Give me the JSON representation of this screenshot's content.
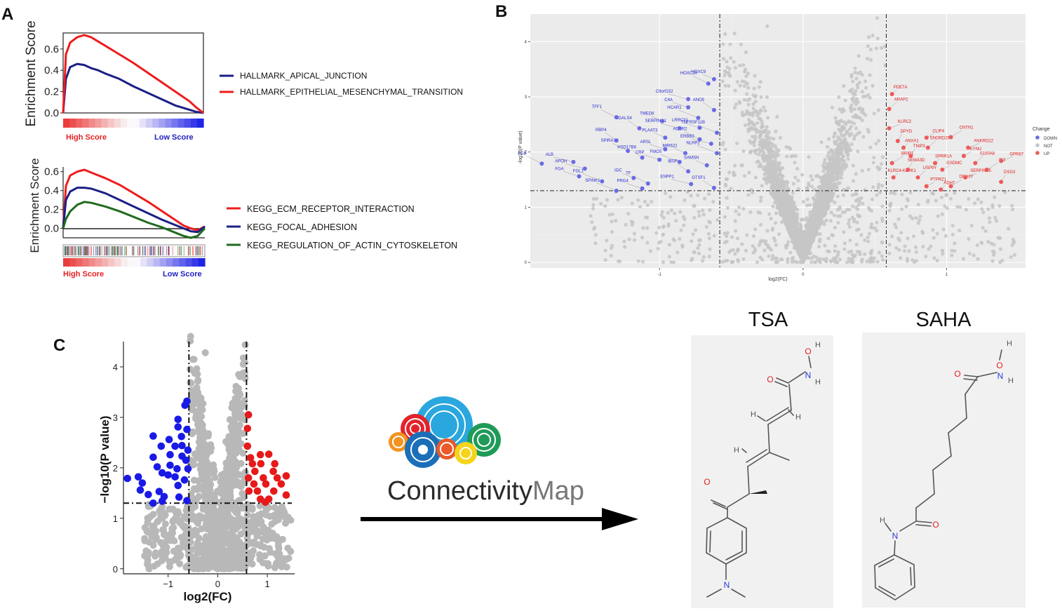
{
  "panels": {
    "A": {
      "letter": "A"
    },
    "B": {
      "letter": "B"
    },
    "C": {
      "letter": "C"
    }
  },
  "colors": {
    "red": "#ee1c1c",
    "navy": "#1b1f84",
    "green": "#1f6b1f",
    "blue_point": "#1a1ae6",
    "red_point": "#e61a1a",
    "grey_point": "#b8b8b8",
    "b_down": "#6a6ae8",
    "b_up": "#ee5a5a",
    "b_not": "#c6c6c6",
    "b_bg": "#ebebeb",
    "struct_bg": "#f1f1f1",
    "atom_red": "#e02020",
    "atom_blue": "#2a3ad8",
    "bond": "#555555"
  },
  "chart_data": [
    {
      "id": "A1",
      "type": "line",
      "title": "",
      "ylabel": "Enrichment Score",
      "ylim": [
        0,
        0.75
      ],
      "yticks": [
        "0.0",
        "0.2",
        "0.4",
        "0.6"
      ],
      "ytick_values": [
        0,
        0.2,
        0.4,
        0.6
      ],
      "x": [
        0,
        2,
        5,
        10,
        15,
        20,
        25,
        30,
        40,
        50,
        60,
        70,
        80,
        90,
        95,
        100
      ],
      "series": [
        {
          "name": "HALLMARK_APICAL_JUNCTION",
          "color": "#1b1f84",
          "values": [
            0,
            0.32,
            0.43,
            0.46,
            0.45,
            0.42,
            0.4,
            0.37,
            0.32,
            0.25,
            0.19,
            0.13,
            0.07,
            0.03,
            0.01,
            0
          ]
        },
        {
          "name": "HALLMARK_EPITHELIAL_MESENCHYMAL_TRANSITION",
          "color": "#ee1c1c",
          "values": [
            0,
            0.55,
            0.66,
            0.71,
            0.73,
            0.71,
            0.67,
            0.63,
            0.55,
            0.47,
            0.38,
            0.29,
            0.2,
            0.11,
            0.05,
            0
          ]
        }
      ],
      "score_bar": {
        "high": "High Score",
        "low": "Low Score"
      }
    },
    {
      "id": "A2",
      "type": "line",
      "title": "",
      "ylabel": "Enrichment Score",
      "ylim": [
        -0.1,
        0.65
      ],
      "yticks": [
        "0.0",
        "0.2",
        "0.4",
        "0.6"
      ],
      "ytick_values": [
        0,
        0.2,
        0.4,
        0.6
      ],
      "x": [
        0,
        2,
        5,
        10,
        15,
        20,
        30,
        40,
        50,
        60,
        70,
        80,
        85,
        90,
        95,
        100
      ],
      "series": [
        {
          "name": "KEGG_ECM_RECEPTOR_INTERACTION",
          "color": "#ee1c1c",
          "values": [
            0,
            0.45,
            0.56,
            0.6,
            0.62,
            0.59,
            0.53,
            0.46,
            0.37,
            0.28,
            0.18,
            0.08,
            0.03,
            0.0,
            -0.02,
            0.02
          ]
        },
        {
          "name": "KEGG_FOCAL_ADHESION",
          "color": "#1b1f84",
          "values": [
            0,
            0.3,
            0.39,
            0.43,
            0.43,
            0.42,
            0.37,
            0.3,
            0.23,
            0.16,
            0.09,
            0.03,
            0.0,
            -0.03,
            -0.04,
            0.02
          ]
        },
        {
          "name": "KEGG_REGULATION_OF_ACTIN_CYTOSKELETON",
          "color": "#1f6b1f",
          "values": [
            0,
            0.1,
            0.18,
            0.25,
            0.28,
            0.27,
            0.23,
            0.18,
            0.12,
            0.06,
            0.01,
            -0.05,
            -0.08,
            -0.1,
            -0.08,
            0.0
          ]
        }
      ],
      "score_bar": {
        "high": "High Score",
        "low": "Low Score"
      }
    },
    {
      "id": "B",
      "type": "scatter",
      "xlabel": "log2(FC)",
      "ylabel": "-log10(P value)",
      "xlim": [
        -1.9,
        1.55
      ],
      "ylim": [
        -0.1,
        4.5
      ],
      "xticks": [
        "-1",
        "0",
        "1"
      ],
      "xtick_values": [
        -1,
        0,
        1
      ],
      "yticks": [
        "0",
        "1",
        "2",
        "3",
        "4"
      ],
      "ytick_values": [
        0,
        1,
        2,
        3,
        4
      ],
      "thresholds": {
        "x": [
          -0.58,
          0.58
        ],
        "y": 1.3
      },
      "legend": {
        "title": "Change",
        "entries": [
          "DOWN",
          "NOT",
          "UP"
        ]
      },
      "down": [
        {
          "label": "HOXC9",
          "x": -0.62,
          "y": 3.32
        },
        {
          "label": "HOXC10",
          "x": -0.66,
          "y": 3.24
        },
        {
          "label": "C9orf152",
          "x": -0.8,
          "y": 2.96
        },
        {
          "label": "ANO5",
          "x": -0.62,
          "y": 2.76
        },
        {
          "label": "C4A",
          "x": -0.8,
          "y": 2.81
        },
        {
          "label": "HCAR1",
          "x": -0.73,
          "y": 2.62
        },
        {
          "label": "TMED6",
          "x": -0.98,
          "y": 2.56
        },
        {
          "label": "TFF1",
          "x": -1.3,
          "y": 2.63
        },
        {
          "label": "SERPING1",
          "x": -0.86,
          "y": 2.43
        },
        {
          "label": "LGALS4",
          "x": -1.14,
          "y": 2.43
        },
        {
          "label": "LRRC31",
          "x": -0.72,
          "y": 2.44
        },
        {
          "label": "TNFRSF11B",
          "x": -0.6,
          "y": 2.35
        },
        {
          "label": "PLAAT3",
          "x": -0.96,
          "y": 2.26
        },
        {
          "label": "ACKR2",
          "x": -0.72,
          "y": 2.23
        },
        {
          "label": "ERBB3",
          "x": -0.64,
          "y": 2.15
        },
        {
          "label": "RBP4",
          "x": -1.3,
          "y": 2.21
        },
        {
          "label": "ARSL",
          "x": -0.96,
          "y": 2.05
        },
        {
          "label": "NLRP2",
          "x": -0.6,
          "y": 1.98
        },
        {
          "label": "MIR622",
          "x": -0.82,
          "y": 1.98
        },
        {
          "label": "SPIRA1",
          "x": -1.22,
          "y": 2.02
        },
        {
          "label": "ALB",
          "x": -1.6,
          "y": 1.82
        },
        {
          "label": "HSD17B8",
          "x": -1.12,
          "y": 1.9
        },
        {
          "label": "CRP",
          "x": -1.0,
          "y": 1.86
        },
        {
          "label": "FMO5",
          "x": -0.86,
          "y": 1.82
        },
        {
          "label": "SAMSN",
          "x": -0.67,
          "y": 1.76
        },
        {
          "label": "FGB",
          "x": -1.82,
          "y": 1.79
        },
        {
          "label": "APOH",
          "x": -1.52,
          "y": 1.7
        },
        {
          "label": "IBSP",
          "x": -0.8,
          "y": 1.65
        },
        {
          "label": "FGA",
          "x": -1.56,
          "y": 1.56
        },
        {
          "label": "FGL1",
          "x": -1.4,
          "y": 1.47
        },
        {
          "label": "IGC",
          "x": -1.18,
          "y": 1.53
        },
        {
          "label": "TF",
          "x": -1.08,
          "y": 1.43
        },
        {
          "label": "ENPP1",
          "x": -0.78,
          "y": 1.42
        },
        {
          "label": "GTSF1",
          "x": -0.62,
          "y": 1.35
        },
        {
          "label": "PRG4",
          "x": -1.12,
          "y": 1.34
        },
        {
          "label": "SPINK1",
          "x": -1.3,
          "y": 1.3
        }
      ],
      "up": [
        {
          "label": "PDE7A",
          "x": 0.62,
          "y": 3.05
        },
        {
          "label": "ARAP2",
          "x": 0.6,
          "y": 2.78
        },
        {
          "label": "KLRC2",
          "x": 0.6,
          "y": 2.43
        },
        {
          "label": "DPYD",
          "x": 0.66,
          "y": 2.2
        },
        {
          "label": "CLIP4",
          "x": 0.86,
          "y": 2.26
        },
        {
          "label": "CNTN1",
          "x": 1.03,
          "y": 2.27
        },
        {
          "label": "ANXA1",
          "x": 0.7,
          "y": 2.08
        },
        {
          "label": "SNORD29",
          "x": 0.87,
          "y": 2.08
        },
        {
          "label": "ANKRD22",
          "x": 1.15,
          "y": 2.08
        },
        {
          "label": "TNIP3",
          "x": 0.75,
          "y": 1.93
        },
        {
          "label": "KYNU",
          "x": 1.12,
          "y": 1.93
        },
        {
          "label": "BRIP1",
          "x": 0.62,
          "y": 1.8
        },
        {
          "label": "SPRR1A",
          "x": 0.92,
          "y": 1.8
        },
        {
          "label": "S100A8",
          "x": 1.2,
          "y": 1.8
        },
        {
          "label": "GPR87",
          "x": 1.38,
          "y": 1.84
        },
        {
          "label": "SEMA3D",
          "x": 0.73,
          "y": 1.68
        },
        {
          "label": "GSDMC",
          "x": 0.97,
          "y": 1.68
        },
        {
          "label": "PI3",
          "x": 1.28,
          "y": 1.68
        },
        {
          "label": "KLRC4-KLRK1",
          "x": 0.63,
          "y": 1.54
        },
        {
          "label": "USP9Y",
          "x": 0.8,
          "y": 1.54
        },
        {
          "label": "SERPINB5",
          "x": 1.13,
          "y": 1.54
        },
        {
          "label": "DSG3",
          "x": 1.38,
          "y": 1.46
        },
        {
          "label": "PTPRZ1",
          "x": 0.86,
          "y": 1.38
        },
        {
          "label": "DDX3Y",
          "x": 1.03,
          "y": 1.38
        },
        {
          "label": "ADH7",
          "x": 0.96,
          "y": 1.32
        }
      ]
    },
    {
      "id": "C",
      "type": "scatter",
      "xlabel": "log2(FC)",
      "ylabel": "−log10(P value)",
      "xlim": [
        -1.9,
        1.55
      ],
      "ylim": [
        -0.1,
        4.5
      ],
      "xticks": [
        "−1",
        "0",
        "1"
      ],
      "xtick_values": [
        -1,
        0,
        1
      ],
      "yticks": [
        "0",
        "1",
        "2",
        "3",
        "4"
      ],
      "ytick_values": [
        0,
        1,
        2,
        3,
        4
      ],
      "thresholds": {
        "x": [
          -0.58,
          0.58
        ],
        "y": 1.3
      },
      "down": [
        [
          -0.62,
          3.32
        ],
        [
          -0.66,
          3.24
        ],
        [
          -0.8,
          2.96
        ],
        [
          -0.62,
          2.76
        ],
        [
          -0.8,
          2.81
        ],
        [
          -0.73,
          2.62
        ],
        [
          -0.98,
          2.56
        ],
        [
          -1.3,
          2.63
        ],
        [
          -0.86,
          2.43
        ],
        [
          -1.14,
          2.43
        ],
        [
          -0.72,
          2.44
        ],
        [
          -0.6,
          2.35
        ],
        [
          -0.96,
          2.26
        ],
        [
          -0.72,
          2.23
        ],
        [
          -0.64,
          2.15
        ],
        [
          -1.3,
          2.21
        ],
        [
          -0.96,
          2.05
        ],
        [
          -0.6,
          1.98
        ],
        [
          -0.82,
          1.98
        ],
        [
          -1.22,
          2.02
        ],
        [
          -1.6,
          1.82
        ],
        [
          -1.12,
          1.9
        ],
        [
          -1.0,
          1.86
        ],
        [
          -0.86,
          1.82
        ],
        [
          -0.67,
          1.76
        ],
        [
          -1.82,
          1.79
        ],
        [
          -1.52,
          1.7
        ],
        [
          -0.8,
          1.65
        ],
        [
          -1.56,
          1.56
        ],
        [
          -1.4,
          1.47
        ],
        [
          -1.18,
          1.53
        ],
        [
          -1.08,
          1.43
        ],
        [
          -0.78,
          1.42
        ],
        [
          -0.62,
          1.35
        ],
        [
          -1.12,
          1.34
        ],
        [
          -1.3,
          1.3
        ]
      ],
      "up": [
        [
          0.62,
          3.05
        ],
        [
          0.6,
          2.78
        ],
        [
          0.6,
          2.43
        ],
        [
          0.66,
          2.2
        ],
        [
          0.86,
          2.26
        ],
        [
          1.03,
          2.27
        ],
        [
          0.7,
          2.08
        ],
        [
          0.87,
          2.08
        ],
        [
          1.15,
          2.08
        ],
        [
          0.75,
          1.93
        ],
        [
          1.12,
          1.93
        ],
        [
          0.62,
          1.8
        ],
        [
          0.92,
          1.8
        ],
        [
          1.2,
          1.8
        ],
        [
          1.38,
          1.84
        ],
        [
          0.73,
          1.68
        ],
        [
          0.97,
          1.68
        ],
        [
          1.28,
          1.68
        ],
        [
          0.63,
          1.54
        ],
        [
          0.8,
          1.54
        ],
        [
          1.13,
          1.54
        ],
        [
          1.38,
          1.46
        ],
        [
          0.86,
          1.38
        ],
        [
          1.03,
          1.38
        ],
        [
          0.96,
          1.32
        ]
      ]
    }
  ],
  "cmap": {
    "text_main": "Connectivity",
    "text_sub": "Map"
  },
  "structures": {
    "tsa": {
      "name": "TSA"
    },
    "saha": {
      "name": "SAHA"
    }
  },
  "atoms": {
    "O": "O",
    "H": "H",
    "N": "N"
  }
}
